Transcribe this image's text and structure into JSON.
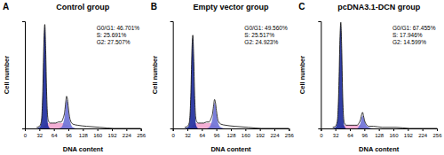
{
  "chart_data": [
    {
      "type": "area",
      "panel_label": "A",
      "title": "Control group",
      "x_label": "DNA content",
      "y_label": "Cell number",
      "annotations": [
        "G0/G1: 46.701%",
        "S: 25.691%",
        "G2: 27.507%"
      ],
      "x": [
        26,
        32,
        36,
        38,
        40,
        42,
        44,
        46,
        48,
        50,
        52,
        56,
        62,
        68,
        74,
        80,
        84,
        88,
        90,
        92,
        94,
        96,
        100,
        106,
        116,
        136,
        166,
        196,
        256
      ],
      "series": [
        {
          "type": "area",
          "color": "#f2a6cf",
          "values": [
            0,
            0,
            0,
            0,
            1,
            2,
            3,
            4,
            5,
            5,
            5,
            5,
            5,
            5,
            5,
            5,
            5,
            4,
            4,
            3,
            3,
            2,
            1,
            0,
            0,
            0,
            0,
            0,
            0
          ]
        },
        {
          "type": "area",
          "color": "#1c2a9c",
          "values": [
            0,
            1,
            5,
            15,
            40,
            78,
            95,
            70,
            30,
            8,
            2,
            0,
            0,
            0,
            0,
            0,
            0,
            0,
            0,
            0,
            0,
            0,
            0,
            0,
            0,
            0,
            0,
            0,
            0
          ]
        },
        {
          "type": "area",
          "color": "#6c70d6",
          "values": [
            0,
            0,
            0,
            0,
            0,
            0,
            0,
            0,
            0,
            0,
            0,
            0,
            0,
            0,
            0,
            1,
            4,
            12,
            20,
            27,
            24,
            16,
            6,
            1,
            0,
            0,
            0,
            0,
            0
          ]
        },
        {
          "type": "line",
          "color": "#000000",
          "values": [
            1,
            2,
            6,
            16,
            42,
            80,
            97,
            73,
            34,
            13,
            7,
            5,
            5,
            5,
            6,
            6,
            9,
            16,
            24,
            30,
            27,
            19,
            8,
            4,
            3,
            2,
            1,
            0,
            0
          ]
        }
      ],
      "xlim": [
        0,
        256
      ],
      "xticks": [
        0,
        32,
        64,
        96,
        128,
        160,
        192,
        224,
        256
      ],
      "ylim": [
        0,
        100
      ],
      "grid": false,
      "stacked": false,
      "tick_labels": "x"
    },
    {
      "type": "area",
      "panel_label": "B",
      "title": "Empty vector group",
      "x_label": "DNA content",
      "y_label": "Cell number",
      "annotations": [
        "G0/G1: 49.560%",
        "S: 25.517%",
        "G2: 24.923%"
      ],
      "x": [
        26,
        32,
        36,
        38,
        40,
        42,
        44,
        46,
        48,
        50,
        52,
        56,
        62,
        68,
        74,
        80,
        84,
        88,
        90,
        92,
        94,
        96,
        100,
        106,
        116,
        136,
        166,
        196,
        256
      ],
      "series": [
        {
          "type": "area",
          "color": "#f2a6cf",
          "values": [
            0,
            0,
            0,
            0,
            1,
            2,
            3,
            4,
            5,
            5,
            5,
            5,
            5,
            5,
            5,
            5,
            5,
            4,
            4,
            3,
            3,
            2,
            1,
            0,
            0,
            0,
            0,
            0,
            0
          ]
        },
        {
          "type": "area",
          "color": "#1c2a9c",
          "values": [
            0,
            1,
            4,
            13,
            35,
            70,
            85,
            62,
            27,
            7,
            2,
            0,
            0,
            0,
            0,
            0,
            0,
            0,
            0,
            0,
            0,
            0,
            0,
            0,
            0,
            0,
            0,
            0,
            0
          ]
        },
        {
          "type": "area",
          "color": "#6c70d6",
          "values": [
            0,
            0,
            0,
            0,
            0,
            0,
            0,
            0,
            0,
            0,
            0,
            0,
            0,
            0,
            0,
            1,
            4,
            11,
            18,
            24,
            21,
            14,
            5,
            1,
            0,
            0,
            0,
            0,
            0
          ]
        },
        {
          "type": "line",
          "color": "#000000",
          "values": [
            1,
            2,
            5,
            14,
            37,
            72,
            87,
            66,
            31,
            12,
            7,
            5,
            5,
            5,
            6,
            6,
            9,
            15,
            22,
            27,
            24,
            17,
            7,
            4,
            3,
            2,
            1,
            0,
            0
          ]
        }
      ],
      "xlim": [
        0,
        256
      ],
      "xticks": [
        0,
        32,
        64,
        96,
        128,
        160,
        192,
        224,
        256
      ],
      "ylim": [
        0,
        100
      ],
      "grid": false,
      "stacked": false,
      "tick_labels": "x"
    },
    {
      "type": "area",
      "panel_label": "C",
      "title": "pcDNA3.1-DCN group",
      "x_label": "DNA content",
      "y_label": "Cell number",
      "annotations": [
        "G0/G1: 67.455%",
        "S: 17.946%",
        "G2: 14.599%"
      ],
      "x": [
        26,
        32,
        36,
        38,
        40,
        42,
        44,
        46,
        48,
        50,
        52,
        56,
        62,
        68,
        74,
        80,
        84,
        88,
        90,
        92,
        94,
        96,
        100,
        106,
        116,
        136,
        166,
        196,
        256
      ],
      "series": [
        {
          "type": "area",
          "color": "#f2a6cf",
          "values": [
            0,
            0,
            0,
            0,
            1,
            1,
            2,
            3,
            3,
            3,
            3,
            3,
            3,
            3,
            3,
            3,
            3,
            3,
            3,
            2,
            2,
            1,
            1,
            0,
            0,
            0,
            0,
            0,
            0
          ]
        },
        {
          "type": "area",
          "color": "#1c2a9c",
          "values": [
            0,
            1,
            5,
            16,
            42,
            80,
            97,
            72,
            30,
            8,
            2,
            0,
            0,
            0,
            0,
            0,
            0,
            0,
            0,
            0,
            0,
            0,
            0,
            0,
            0,
            0,
            0,
            0,
            0
          ]
        },
        {
          "type": "area",
          "color": "#6c70d6",
          "values": [
            0,
            0,
            0,
            0,
            0,
            0,
            0,
            0,
            0,
            0,
            0,
            0,
            0,
            0,
            0,
            0,
            2,
            6,
            10,
            12,
            10,
            7,
            3,
            1,
            0,
            0,
            0,
            0,
            0
          ]
        },
        {
          "type": "line",
          "color": "#000000",
          "values": [
            1,
            2,
            6,
            17,
            44,
            82,
            99,
            75,
            33,
            11,
            5,
            3,
            3,
            3,
            3,
            3,
            5,
            9,
            13,
            15,
            12,
            8,
            4,
            2,
            2,
            1,
            1,
            0,
            0
          ]
        }
      ],
      "xlim": [
        0,
        256
      ],
      "xticks": [
        0,
        32,
        64,
        96,
        128,
        160,
        192,
        224,
        256
      ],
      "ylim": [
        0,
        100
      ],
      "grid": false,
      "stacked": false,
      "tick_labels": "x"
    }
  ]
}
